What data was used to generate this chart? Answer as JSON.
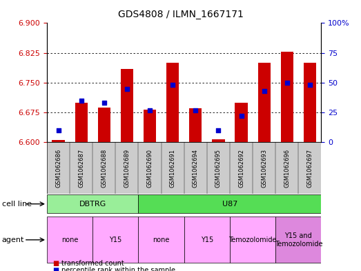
{
  "title": "GDS4808 / ILMN_1667171",
  "samples": [
    "GSM1062686",
    "GSM1062687",
    "GSM1062688",
    "GSM1062689",
    "GSM1062690",
    "GSM1062691",
    "GSM1062694",
    "GSM1062695",
    "GSM1062692",
    "GSM1062693",
    "GSM1062696",
    "GSM1062697"
  ],
  "transformed_count": [
    6.606,
    6.7,
    6.688,
    6.785,
    6.682,
    6.8,
    6.685,
    6.608,
    6.7,
    6.8,
    6.828,
    6.8
  ],
  "percentile_rank": [
    10,
    35,
    33,
    45,
    27,
    48,
    27,
    10,
    22,
    43,
    50,
    48
  ],
  "ylim_left": [
    6.6,
    6.9
  ],
  "ylim_right": [
    0,
    100
  ],
  "yticks_left": [
    6.6,
    6.675,
    6.75,
    6.825,
    6.9
  ],
  "yticks_right": [
    0,
    25,
    50,
    75,
    100
  ],
  "yticklabels_right": [
    "0",
    "25",
    "50",
    "75",
    "100%"
  ],
  "grid_lines": [
    6.675,
    6.75,
    6.825
  ],
  "bar_color": "#cc0000",
  "dot_color": "#0000cc",
  "bar_bottom": 6.6,
  "cell_line_groups": [
    {
      "label": "DBTRG",
      "start": 0,
      "end": 4,
      "color": "#99ee99"
    },
    {
      "label": "U87",
      "start": 4,
      "end": 12,
      "color": "#55dd55"
    }
  ],
  "agent_groups": [
    {
      "label": "none",
      "start": 0,
      "end": 2,
      "color": "#ffaaff"
    },
    {
      "label": "Y15",
      "start": 2,
      "end": 4,
      "color": "#ffaaff"
    },
    {
      "label": "none",
      "start": 4,
      "end": 6,
      "color": "#ffaaff"
    },
    {
      "label": "Y15",
      "start": 6,
      "end": 8,
      "color": "#ffaaff"
    },
    {
      "label": "Temozolomide",
      "start": 8,
      "end": 10,
      "color": "#ffaaff"
    },
    {
      "label": "Y15 and\nTemozolomide",
      "start": 10,
      "end": 12,
      "color": "#dd88dd"
    }
  ],
  "legend_labels": [
    "transformed count",
    "percentile rank within the sample"
  ],
  "legend_colors": [
    "#cc0000",
    "#0000cc"
  ],
  "tick_bg_color": "#cccccc",
  "cell_line_label": "cell line",
  "agent_label": "agent"
}
